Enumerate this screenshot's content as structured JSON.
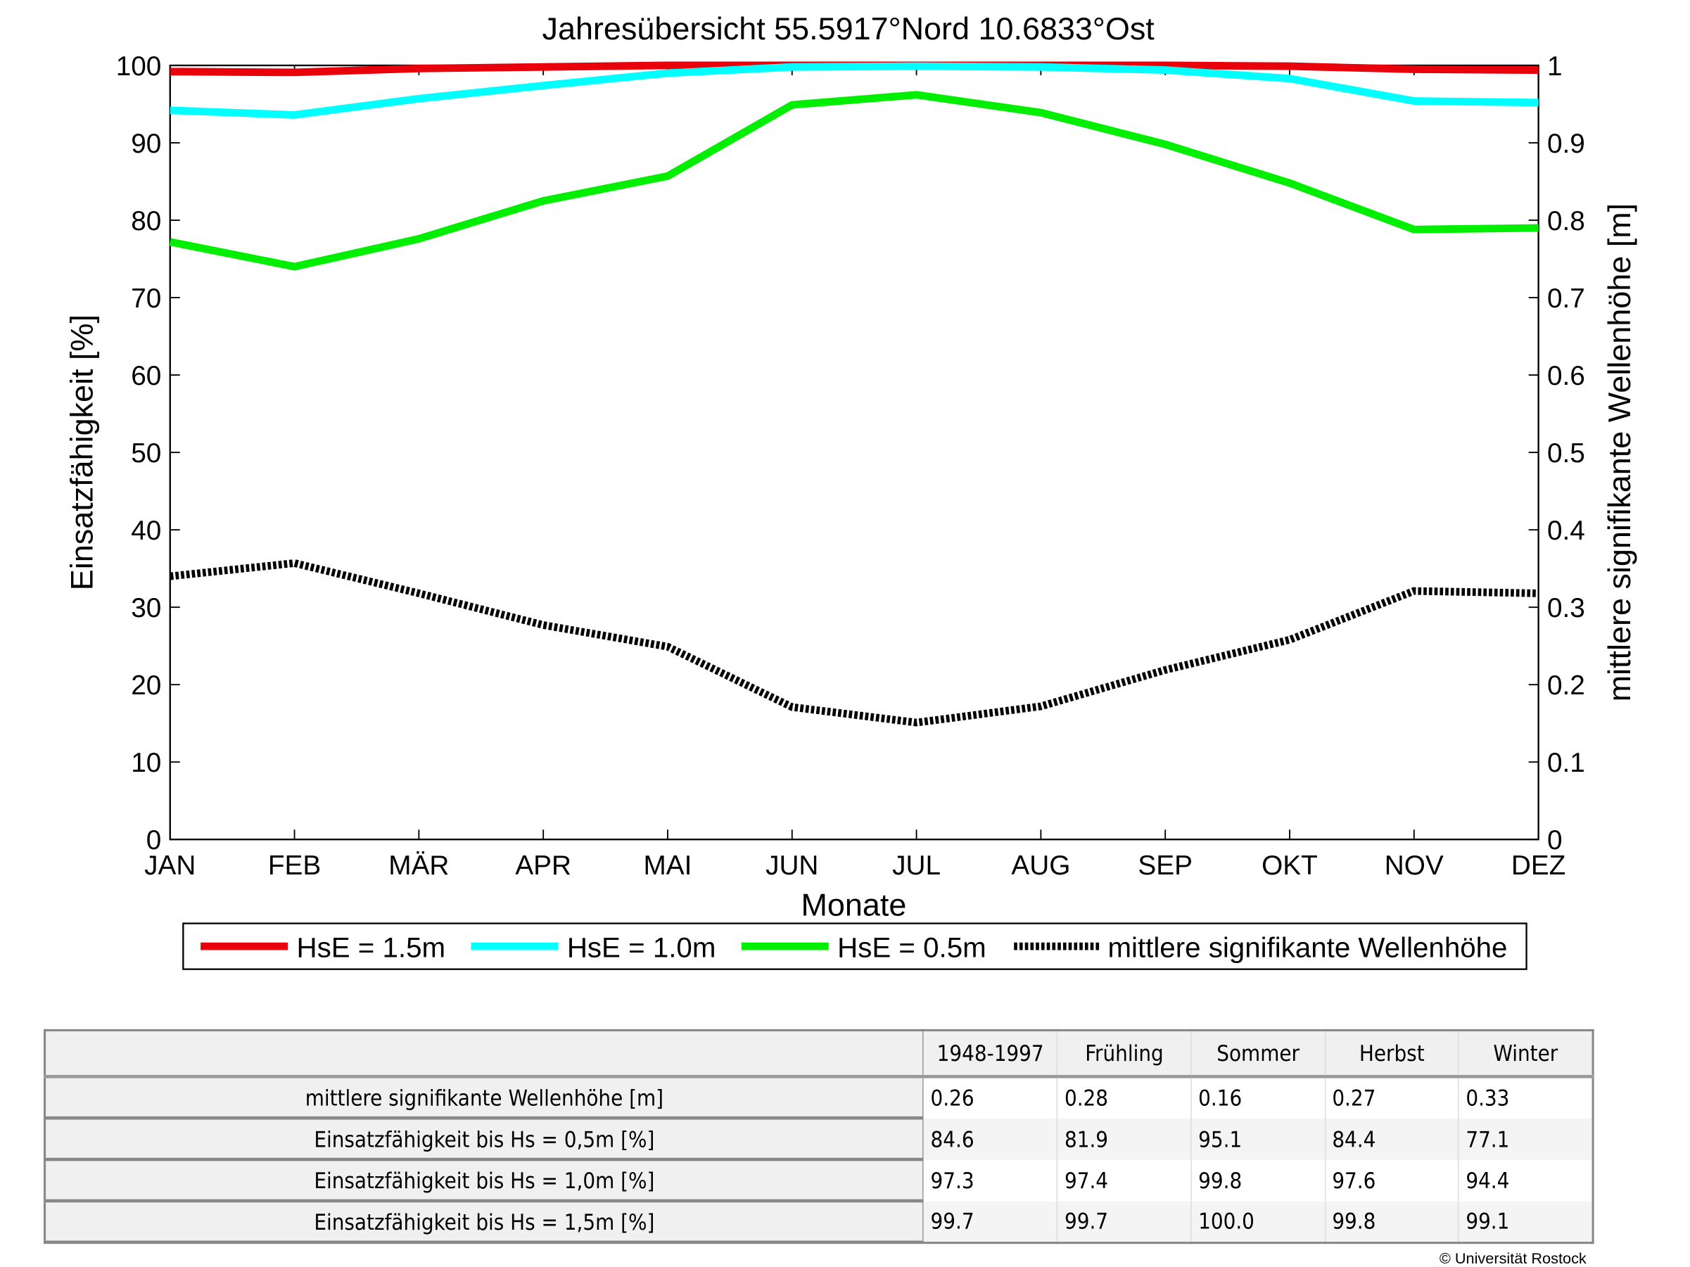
{
  "chart_data": {
    "type": "line",
    "title": "Jahresübersicht  55.5917°Nord  10.6833°Ost",
    "xlabel": "Monate",
    "ylabel": "Einsatzfähigkeit [%]",
    "y2label": "mittlere signifikante Wellenhöhe [m]",
    "categories": [
      "JAN",
      "FEB",
      "MÄR",
      "APR",
      "MAI",
      "JUN",
      "JUL",
      "AUG",
      "SEP",
      "OKT",
      "NOV",
      "DEZ"
    ],
    "ylim": [
      0,
      100
    ],
    "y2lim": [
      0,
      1
    ],
    "yticks": [
      "0",
      "10",
      "20",
      "30",
      "40",
      "50",
      "60",
      "70",
      "80",
      "90",
      "100"
    ],
    "y2ticks": [
      "0",
      "0.1",
      "0.2",
      "0.3",
      "0.4",
      "0.5",
      "0.6",
      "0.7",
      "0.8",
      "0.9",
      "1"
    ],
    "legend_position": "bottom",
    "series": [
      {
        "name": "HsE = 1.5m",
        "axis": "left",
        "color": "#e8000b",
        "style": "solid",
        "values": [
          99.2,
          99.1,
          99.6,
          99.8,
          100,
          100,
          100,
          100,
          100,
          99.9,
          99.5,
          99.4
        ]
      },
      {
        "name": "HsE = 1.0m",
        "axis": "left",
        "color": "#00ffff",
        "style": "solid",
        "values": [
          94.2,
          93.6,
          95.7,
          97.4,
          99.0,
          99.8,
          99.9,
          99.8,
          99.4,
          98.3,
          95.4,
          95.2
        ]
      },
      {
        "name": "HsE = 0.5m",
        "axis": "left",
        "color": "#00ee00",
        "style": "solid",
        "values": [
          77.2,
          74.0,
          77.6,
          82.5,
          85.7,
          94.9,
          96.2,
          93.9,
          89.8,
          84.8,
          78.8,
          79.0
        ]
      },
      {
        "name": "mittlere signifikante Wellenhöhe",
        "axis": "right",
        "color": "#000000",
        "style": "dotted",
        "values": [
          0.34,
          0.357,
          0.318,
          0.277,
          0.249,
          0.171,
          0.151,
          0.172,
          0.219,
          0.258,
          0.321,
          0.318
        ]
      }
    ]
  },
  "table": {
    "headers": [
      "",
      "1948-1997",
      "Frühling",
      "Sommer",
      "Herbst",
      "Winter"
    ],
    "rows": [
      {
        "label": "mittlere signifikante Wellenhöhe [m]",
        "values": [
          "0.26",
          "0.28",
          "0.16",
          "0.27",
          "0.33"
        ]
      },
      {
        "label": "Einsatzfähigkeit bis Hs = 0,5m [%]",
        "values": [
          "84.6",
          "81.9",
          "95.1",
          "84.4",
          "77.1"
        ]
      },
      {
        "label": "Einsatzfähigkeit bis Hs = 1,0m [%]",
        "values": [
          "97.3",
          "97.4",
          "99.8",
          "97.6",
          "94.4"
        ]
      },
      {
        "label": "Einsatzfähigkeit bis Hs = 1,5m [%]",
        "values": [
          "99.7",
          "99.7",
          "100.0",
          "99.8",
          "99.1"
        ]
      }
    ]
  },
  "copyright": "© Universität Rostock"
}
